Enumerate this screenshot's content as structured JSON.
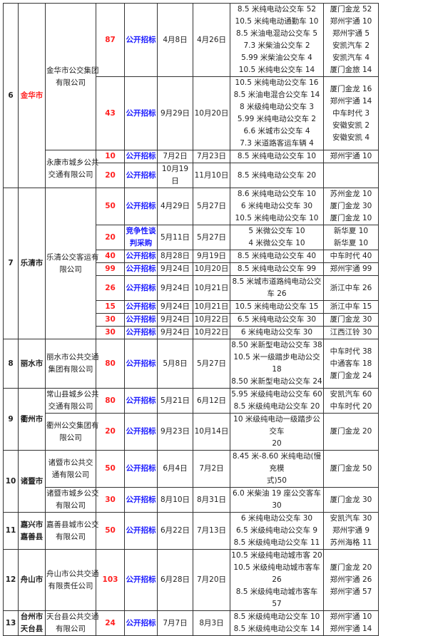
{
  "colors": {
    "quantity": "#ff2020",
    "method": "#1a1aff",
    "highlight_city": "#ff2020"
  },
  "regions": [
    {
      "no": "6",
      "city": [
        "金华市"
      ],
      "highlight": true,
      "companies": [
        {
          "name": [
            "金华市公交集团",
            "有限公司"
          ],
          "tenders": [
            {
              "qty": "87",
              "method": [
                "公开招标"
              ],
              "start": "4月8日",
              "end": "4月26日",
              "models": [
                "8.5 米纯电动公交车 52",
                "10.5 米纯电动通勤车 10",
                "8.5 米油电混动公交车 5",
                "7.3 米柴油公交车 2",
                "5.99 米柴油公交车 4",
                "10.5 米纯电公交车 14"
              ],
              "suppliers": [
                "厦门金龙 52",
                "郑州宇通 10",
                "郑州宇通 5",
                "安凯汽车 2",
                "安凯汽车 4",
                "厦门金旅 14"
              ]
            },
            {
              "qty": "43",
              "method": [
                "公开招标"
              ],
              "start": "9月29日",
              "end": "10月20日",
              "models": [
                "10.5 米纯电动公交车 16",
                "8.5 米油电混合公交车 14",
                "8 米级纯电动公交车 3",
                "5.99 米纯电动公交车 2",
                "6.6 米城市公交车 4",
                "7.3 米道路客运车辆 4"
              ],
              "suppliers": [
                "厦门金龙 16",
                "郑州宇通 14",
                "中车时代 3",
                "安徽安凯 2",
                "安徽安凯 4"
              ]
            }
          ]
        },
        {
          "name": [
            "永康市城乡公共",
            "交通有限公司"
          ],
          "tenders": [
            {
              "qty": "10",
              "method": [
                "公开招标"
              ],
              "start": "7月2日",
              "end": "7月23日",
              "models": [
                "8.5 米纯电动公交车 10"
              ],
              "suppliers": [
                "郑州宇通 10"
              ]
            },
            {
              "qty": "20",
              "method": [
                "公开招标"
              ],
              "start": "10月19日",
              "end": "11月10日",
              "models": [
                "8.5 米纯电动公交车 20"
              ],
              "suppliers": []
            }
          ]
        }
      ]
    },
    {
      "no": "7",
      "city": [
        "乐清市"
      ],
      "companies": [
        {
          "name": [
            "乐清公交客运有",
            "限公司"
          ],
          "tenders": [
            {
              "qty": "50",
              "method": [
                "公开招标"
              ],
              "start": "4月29日",
              "end": "5月27日",
              "models": [
                "8.6 米纯电动公交车 10",
                "6 米纯电动公交车 30",
                "10.5 米纯电动公交车 10"
              ],
              "suppliers": [
                "苏州金龙 10",
                "厦门金龙 30",
                "厦门金龙 10"
              ]
            },
            {
              "qty": "20",
              "method": [
                "竞争性谈",
                "判采购"
              ],
              "start": "5月11日",
              "end": "5月27日",
              "models": [
                "5 米微公交车 10",
                "4 米微公交车 10"
              ],
              "suppliers": [
                "新华夏 10",
                "新华夏 10"
              ]
            },
            {
              "qty": "40",
              "method": [
                "公开招标"
              ],
              "start": "8月28日",
              "end": "9月19日",
              "models": [
                "8.5 米纯电动公交车 40"
              ],
              "suppliers": [
                "中车时代 40"
              ]
            },
            {
              "qty": "99",
              "method": [
                "公开招标"
              ],
              "start": "9月24日",
              "end": "10月20日",
              "models": [
                "8.5 米纯电动公交车 99"
              ],
              "suppliers": [
                "郑州宇通 99"
              ]
            },
            {
              "qty": "26",
              "method": [
                "公开招标"
              ],
              "start": "9月24日",
              "end": "10月21日",
              "models": [
                "8.5 米城市道路纯电动公交车 26"
              ],
              "suppliers": [
                "浙江中车 26"
              ]
            },
            {
              "qty": "15",
              "method": [
                "公开招标"
              ],
              "start": "9月24日",
              "end": "10月21日",
              "models": [
                "10.5 米纯电动公交车 15"
              ],
              "suppliers": [
                "浙江中车 15"
              ]
            },
            {
              "qty": "30",
              "method": [
                "公开招标"
              ],
              "start": "9月24日",
              "end": "10月22日",
              "models": [
                "6.5 米纯电动公交车 30"
              ],
              "suppliers": [
                "厦门金龙 30"
              ]
            },
            {
              "qty": "30",
              "method": [
                "公开招标"
              ],
              "start": "9月24日",
              "end": "10月22日",
              "models": [
                "6 米纯电动公交车 30"
              ],
              "suppliers": [
                "江西江铃 30"
              ]
            }
          ]
        }
      ]
    },
    {
      "no": "8",
      "city": [
        "丽水市"
      ],
      "companies": [
        {
          "name": [
            "丽水市公共交通",
            "集团有限公司"
          ],
          "tenders": [
            {
              "qty": "80",
              "method": [
                "公开招标"
              ],
              "start": "5月8日",
              "end": "5月27日",
              "models": [
                "8.50 米新型电动公交车 38",
                "10.5 米一级踏步电动公交 18",
                "8.50 米新型电动公交车 24"
              ],
              "suppliers": [
                "中车时代 38",
                "中通客车 18",
                "厦门金龙 24"
              ]
            }
          ]
        }
      ]
    },
    {
      "no": "9",
      "city": [
        "衢州市"
      ],
      "companies": [
        {
          "name": [
            "常山县城乡公共",
            "交通有限公司"
          ],
          "tenders": [
            {
              "qty": "80",
              "method": [
                "公开招标"
              ],
              "start": "5月21日",
              "end": "6月12日",
              "models": [
                "5.95 米级纯电动公交车 60",
                "8.5 米级纯电动公交车 20"
              ],
              "suppliers": [
                "安凯汽车 60",
                "中车时代 20"
              ]
            }
          ]
        },
        {
          "name": [
            "衢州公交集团有",
            "限公司"
          ],
          "tenders": [
            {
              "qty": "20",
              "method": [
                "公开招标"
              ],
              "start": "9月23日",
              "end": "10月14日",
              "models": [
                "10 米级纯电动一级踏步公交车",
                "20"
              ],
              "suppliers": [
                "厦门金龙 20"
              ]
            }
          ]
        }
      ]
    },
    {
      "no": "10",
      "city": [
        "诸暨市"
      ],
      "companies": [
        {
          "name": [
            "诸暨市公共交",
            "通有限公司"
          ],
          "tenders": [
            {
              "qty": "50",
              "method": [
                "公开招标"
              ],
              "start": "6月4日",
              "end": "7月2日",
              "models": [
                "8.45 米-8.60 米纯电动(慢充模",
                "式)50"
              ],
              "suppliers": [
                "厦门金龙 50"
              ]
            }
          ]
        },
        {
          "name": [
            "诸暨市城乡公交",
            "有限公司"
          ],
          "tenders": [
            {
              "qty": "30",
              "method": [
                "公开招标"
              ],
              "start": "8月10日",
              "end": "8月31日",
              "models": [
                "6.0 米柴油 19 座公交客车 30"
              ],
              "suppliers": [
                "厦门金龙 30"
              ]
            }
          ]
        }
      ]
    },
    {
      "no": "11",
      "city": [
        "嘉兴市",
        "嘉善县"
      ],
      "companies": [
        {
          "name": [
            "嘉善县城市公交",
            "有限公司"
          ],
          "tenders": [
            {
              "qty": "50",
              "method": [
                "公开招标"
              ],
              "start": "6月22日",
              "end": "7月13日",
              "models": [
                "6 米纯电动公交车 30",
                "6.5 米级纯电动公交车 9",
                "8.5 米级纯电动公交车 11"
              ],
              "suppliers": [
                "安凯汽车 30",
                "郑州宇通 9",
                "苏州海格 11"
              ]
            }
          ]
        }
      ]
    },
    {
      "no": "12",
      "city": [
        "舟山市"
      ],
      "companies": [
        {
          "name": [
            "舟山市公共交通",
            "有限责任公司"
          ],
          "tenders": [
            {
              "qty": "103",
              "method": [
                "公开招标"
              ],
              "start": "6月28日",
              "end": "7月20日",
              "models": [
                "10.5 米级纯电动城市客 20",
                "10.5 米级纯电动城市客车 26",
                "8.5 米级纯电动城市客车 57"
              ],
              "suppliers": [
                "厦门金龙 20",
                "郑州宇通 26",
                "郑州宇通 57"
              ]
            }
          ]
        }
      ]
    },
    {
      "no": "13",
      "city": [
        "台州市",
        "天台县"
      ],
      "companies": [
        {
          "name": [
            "天台县公共交通",
            "有限公司"
          ],
          "tenders": [
            {
              "qty": "24",
              "method": [
                "公开招标"
              ],
              "start": "7月7日",
              "end": "8月3日",
              "models": [
                "8.5 米级纯电动公交车 10",
                "8.5 米级纯电动公交车 14"
              ],
              "suppliers": [
                "郑州宇通 10",
                "郑州宇通 14"
              ]
            }
          ]
        }
      ]
    }
  ]
}
